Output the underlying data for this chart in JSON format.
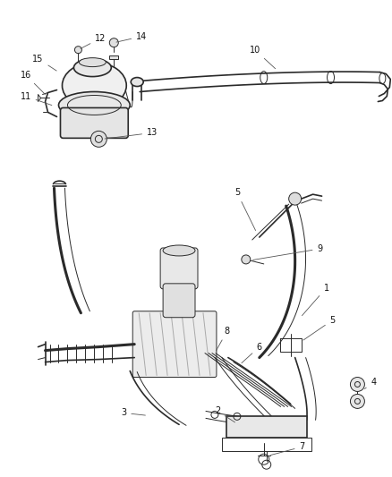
{
  "bg_color": "#ffffff",
  "line_color": "#2a2a2a",
  "label_color": "#111111",
  "leader_color": "#555555",
  "label_fontsize": 7.0,
  "fig_width": 4.38,
  "fig_height": 5.33,
  "dpi": 100
}
